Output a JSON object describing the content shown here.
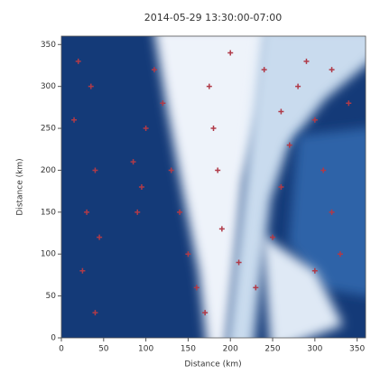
{
  "chart_data": {
    "type": "scatter",
    "title": "2014-05-29 13:30:00-07:00",
    "xlabel": "Distance (km)",
    "ylabel": "Distance (km)",
    "xlim": [
      0,
      360
    ],
    "ylim": [
      0,
      360
    ],
    "xticks": [
      0,
      50,
      100,
      150,
      200,
      250,
      300,
      350
    ],
    "yticks": [
      0,
      50,
      100,
      150,
      200,
      250,
      300,
      350
    ],
    "series": [
      {
        "color": "#b03a48",
        "x": [
          20,
          35,
          15,
          40,
          30,
          45,
          25,
          40,
          90,
          95,
          85,
          100,
          110,
          120,
          130,
          140,
          150,
          160,
          170,
          180,
          175,
          185,
          190,
          210,
          230,
          250,
          260,
          270,
          280,
          290,
          300,
          310,
          320,
          330,
          300,
          340,
          320,
          260,
          240,
          200
        ],
        "values": [
          330,
          300,
          260,
          200,
          150,
          120,
          80,
          30,
          150,
          180,
          210,
          250,
          320,
          280,
          200,
          150,
          100,
          60,
          30,
          250,
          300,
          200,
          130,
          90,
          60,
          120,
          180,
          230,
          300,
          330,
          260,
          200,
          150,
          100,
          80,
          280,
          320,
          270,
          320,
          340
        ]
      }
    ]
  }
}
